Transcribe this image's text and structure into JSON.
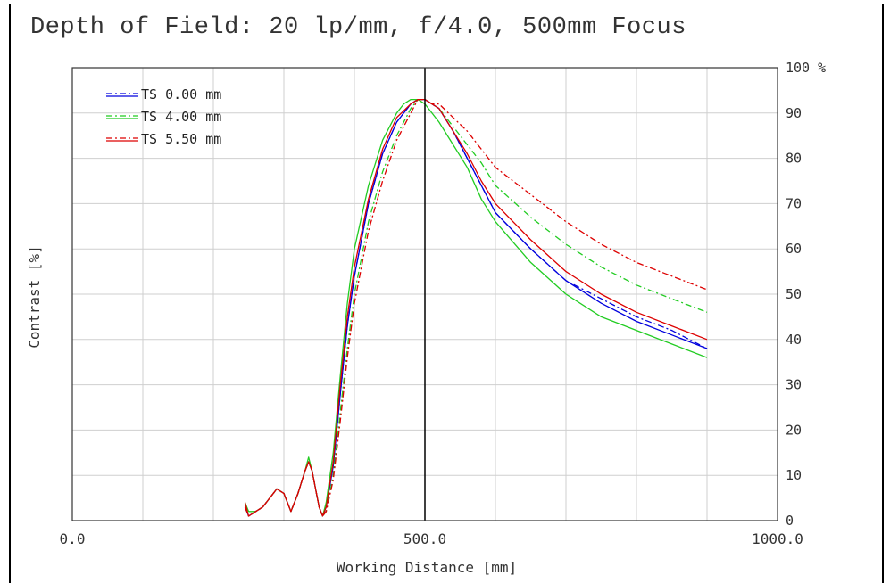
{
  "chart_data": {
    "type": "line",
    "title": "Depth of Field: 20 lp/mm, f/4.0, 500mm Focus",
    "xlabel": "Working Distance [mm]",
    "ylabel": "Contrast [%]",
    "xlim": [
      0,
      1000
    ],
    "ylim": [
      0,
      100
    ],
    "x_tick_labels": [
      {
        "x": 0,
        "label": "0.0"
      },
      {
        "x": 500,
        "label": "500.0"
      },
      {
        "x": 1000,
        "label": "1000.0"
      }
    ],
    "y_tick_labels": [
      {
        "y": 100,
        "label": "100 %"
      },
      {
        "y": 90,
        "label": "90"
      },
      {
        "y": 80,
        "label": "80"
      },
      {
        "y": 70,
        "label": "70"
      },
      {
        "y": 60,
        "label": "60"
      },
      {
        "y": 50,
        "label": "50"
      },
      {
        "y": 40,
        "label": "40"
      },
      {
        "y": 30,
        "label": "30"
      },
      {
        "y": 20,
        "label": "20"
      },
      {
        "y": 10,
        "label": "10"
      },
      {
        "y": 0,
        "label": "0"
      }
    ],
    "grid": true,
    "focus_line_x": 500,
    "legend": {
      "placement": "top-left",
      "entries": [
        "TS 0.00 mm",
        "TS 4.00 mm",
        "TS 5.50 mm"
      ]
    },
    "series": [
      {
        "name": "TS 0.00 mm",
        "color": "#0000dd",
        "style": "solid",
        "x": [
          245,
          250,
          260,
          270,
          280,
          290,
          300,
          310,
          320,
          330,
          335,
          340,
          345,
          350,
          355,
          360,
          370,
          380,
          390,
          400,
          420,
          440,
          460,
          480,
          490,
          500,
          520,
          540,
          560,
          580,
          600,
          650,
          700,
          750,
          800,
          850,
          900
        ],
        "y": [
          3,
          1,
          2,
          3,
          5,
          7,
          6,
          2,
          6,
          11,
          13,
          11,
          7,
          3,
          1,
          3,
          12,
          28,
          43,
          54,
          70,
          81,
          88,
          92,
          93,
          93,
          91,
          86,
          80,
          74,
          68,
          60,
          53,
          48,
          44,
          41,
          38
        ]
      },
      {
        "name": "TS 0.00 mm",
        "color": "#0000dd",
        "style": "dashdot",
        "x": [
          245,
          250,
          260,
          270,
          280,
          290,
          300,
          310,
          320,
          330,
          335,
          340,
          345,
          350,
          355,
          360,
          370,
          380,
          390,
          400,
          420,
          440,
          460,
          480,
          490,
          500,
          520,
          540,
          560,
          580,
          600,
          650,
          700,
          750,
          800,
          850,
          900
        ],
        "y": [
          3,
          1,
          2,
          3,
          5,
          7,
          6,
          2,
          6,
          11,
          13,
          11,
          7,
          3,
          1,
          3,
          12,
          28,
          43,
          54,
          70,
          81,
          88,
          92,
          93,
          93,
          91,
          86,
          80,
          74,
          68,
          60,
          53,
          49,
          45,
          42,
          38
        ]
      },
      {
        "name": "TS 4.00 mm",
        "color": "#22cc22",
        "style": "solid",
        "x": [
          245,
          250,
          260,
          270,
          280,
          290,
          300,
          310,
          320,
          330,
          335,
          340,
          345,
          350,
          355,
          360,
          370,
          380,
          390,
          400,
          420,
          440,
          460,
          470,
          480,
          490,
          500,
          520,
          540,
          560,
          580,
          600,
          650,
          700,
          750,
          800,
          850,
          900
        ],
        "y": [
          4,
          2,
          2,
          3,
          5,
          7,
          6,
          2,
          6,
          11,
          14,
          11,
          7,
          3,
          1,
          4,
          15,
          32,
          48,
          60,
          74,
          84,
          90,
          92,
          93,
          93,
          92,
          88,
          83,
          78,
          71,
          66,
          57,
          50,
          45,
          42,
          39,
          36
        ]
      },
      {
        "name": "TS 4.00 mm",
        "color": "#22cc22",
        "style": "dashdot",
        "x": [
          245,
          250,
          260,
          270,
          280,
          290,
          300,
          310,
          320,
          330,
          335,
          340,
          345,
          350,
          355,
          360,
          370,
          380,
          390,
          400,
          420,
          440,
          460,
          480,
          490,
          500,
          510,
          520,
          540,
          560,
          580,
          600,
          650,
          700,
          750,
          800,
          850,
          900
        ],
        "y": [
          3,
          1,
          2,
          3,
          5,
          7,
          6,
          2,
          6,
          11,
          13,
          11,
          7,
          3,
          1,
          2,
          10,
          24,
          38,
          50,
          66,
          77,
          85,
          91,
          93,
          93,
          92,
          91,
          87,
          83,
          79,
          74,
          67,
          61,
          56,
          52,
          49,
          46
        ]
      },
      {
        "name": "TS 5.50 mm",
        "color": "#dd0000",
        "style": "solid",
        "x": [
          245,
          250,
          260,
          270,
          280,
          290,
          300,
          310,
          320,
          330,
          335,
          340,
          345,
          350,
          355,
          360,
          370,
          380,
          390,
          400,
          420,
          440,
          460,
          480,
          490,
          500,
          520,
          540,
          560,
          580,
          600,
          650,
          700,
          750,
          800,
          850,
          900
        ],
        "y": [
          4,
          1,
          2,
          3,
          5,
          7,
          6,
          2,
          6,
          11,
          13,
          11,
          7,
          3,
          1,
          3,
          13,
          30,
          45,
          56,
          71,
          82,
          89,
          92,
          93,
          93,
          91,
          86,
          81,
          75,
          70,
          62,
          55,
          50,
          46,
          43,
          40
        ]
      },
      {
        "name": "TS 5.50 mm",
        "color": "#dd0000",
        "style": "dashdot",
        "x": [
          245,
          250,
          260,
          270,
          280,
          290,
          300,
          310,
          320,
          330,
          335,
          340,
          345,
          350,
          355,
          360,
          370,
          380,
          390,
          400,
          420,
          440,
          460,
          480,
          490,
          500,
          510,
          520,
          540,
          560,
          580,
          600,
          650,
          700,
          750,
          800,
          850,
          900
        ],
        "y": [
          3,
          1,
          2,
          3,
          5,
          7,
          6,
          2,
          6,
          11,
          13,
          11,
          7,
          3,
          1,
          2,
          9,
          22,
          36,
          48,
          64,
          75,
          84,
          90,
          93,
          93,
          92,
          92,
          89,
          86,
          82,
          78,
          72,
          66,
          61,
          57,
          54,
          51
        ]
      }
    ]
  }
}
